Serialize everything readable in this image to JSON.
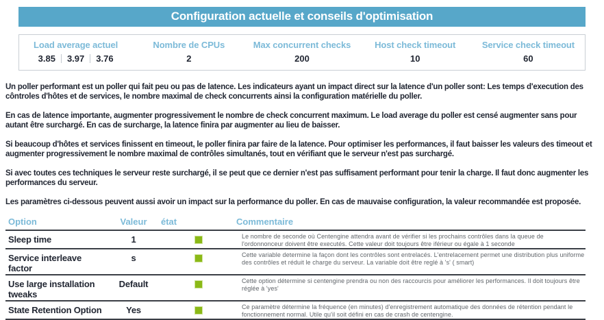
{
  "banner": {
    "title": "Configuration actuelle et conseils d'optimisation"
  },
  "stats": {
    "load": {
      "label": "Load average actuel",
      "values": [
        "3.85",
        "3.97",
        "3.76"
      ]
    },
    "cpus": {
      "label": "Nombre de CPUs",
      "value": "2"
    },
    "max_checks": {
      "label": "Max concurrent checks",
      "value": "200"
    },
    "host_timeout": {
      "label": "Host check timeout",
      "value": "10"
    },
    "service_timeout": {
      "label": "Service check timeout",
      "value": "60"
    }
  },
  "paragraphs": [
    "Un poller performant est un poller qui fait peu ou pas de latence. Les indicateurs ayant un impact direct sur la latence d'un poller sont: Les temps d'execution des côntroles d'hôtes et de services, le nombre maximal de check concurrents ainsi la configuration matérielle du poller.",
    "En cas de latence importante, augmenter progressivement le nombre de check concurrent maximum. Le load average du poller est censé augmenter sans pour autant être surchargé. En cas de surcharge, la latence finira par augmenter au lieu de baisser.",
    "Si beaucoup d'hôtes et services finissent en timeout, le poller finira par faire de la latence. Pour optimiser les performances, il faut baisser les valeurs des timeout et augmenter progressivement le nombre maximal de contrôles simultanés, tout en vérifiant que le serveur n'est pas surchargé.",
    "Si avec toutes ces techniques le serveur reste surchargé, il se peut que ce dernier n'est pas suffisament performant pour tenir la charge. Il faut donc augmenter les performances du serveur.",
    "Les paramètres ci-dessous peuvent aussi avoir un impact sur la performance du poller. En cas de mauvaise configuration, la valeur recommandée est proposée."
  ],
  "advice_table": {
    "headers": {
      "option": "Option",
      "value": "Valeur",
      "state": "état",
      "comment": "Commentaire"
    },
    "rows": [
      {
        "option": "Sleep time",
        "value": "1",
        "state": "ok",
        "comment": "Le nombre de seconde où Centengine attendra avant de vérifier si les prochains contrôles dans la queue de l'ordonnonceur doivent être executés. Cette valeur doit toujours être iférieur ou égale à 1 seconde"
      },
      {
        "option": "Service interleave factor",
        "value": "s",
        "state": "ok",
        "comment": "Cette variable determine la façon dont les contrôles sont entrelacés. L'entrelacement permet une distribution plus uniforme des contrôles et réduit le charge du serveur. La variable doit être reglé à 's' ( smart)"
      },
      {
        "option": "Use large installation tweaks",
        "value": "Default",
        "state": "ok",
        "comment": "Cette option détermine si centengine prendra ou non des raccourcis pour améliorer les performances. Il doit toujours être réglée à 'yes'"
      },
      {
        "option": "State Retention Option",
        "value": "Yes",
        "state": "ok",
        "comment": "Ce paramètre détermine la fréquence (en minutes) d'enregistrement automatique des données de rétention pendant le fonctionnement normal. Utile qu'il soit défini en cas de crash de centengine."
      }
    ]
  },
  "colors": {
    "banner_bg": "#57a7c9",
    "header_text": "#7cbad8",
    "body_text": "#222733",
    "status_ok": "#8bb917",
    "comment_text": "#5f6469",
    "row_border": "#3a3e45"
  }
}
